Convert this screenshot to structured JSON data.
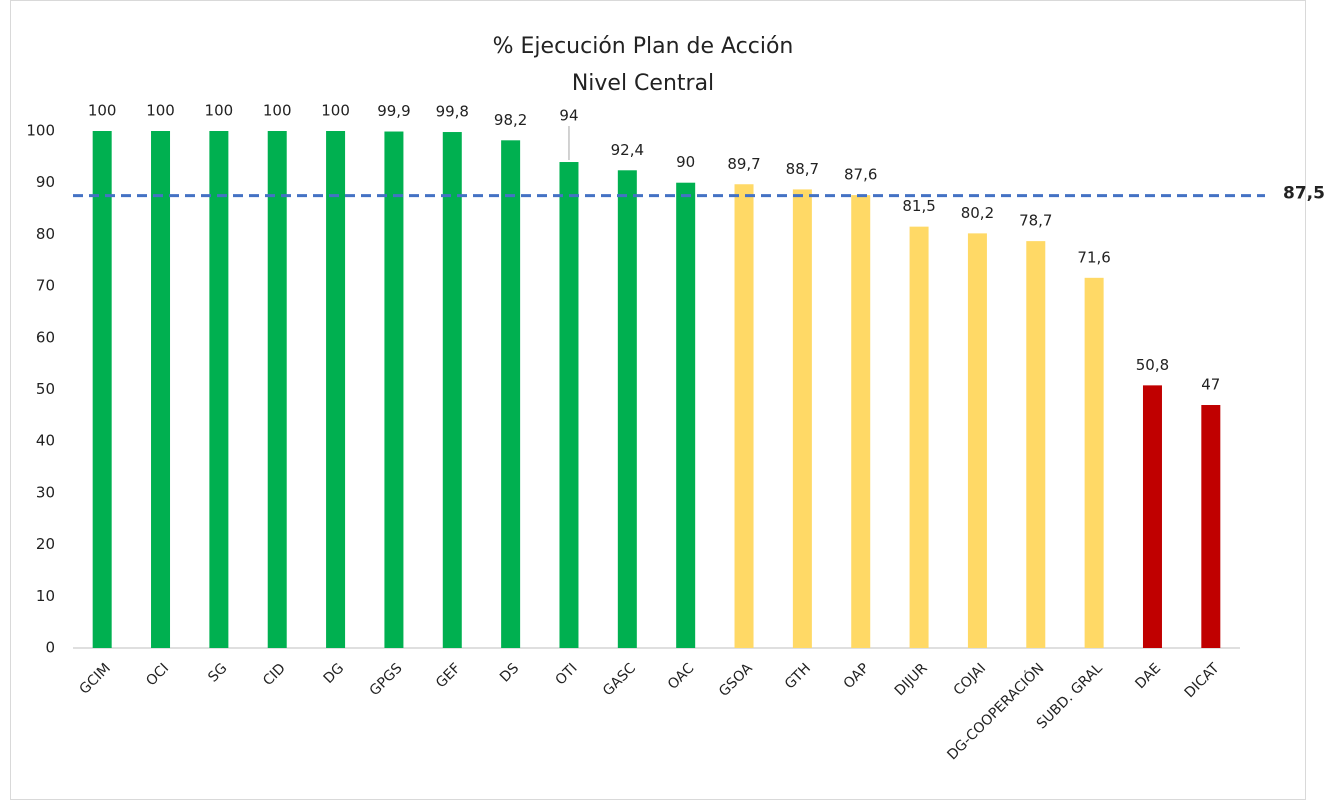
{
  "chart_data": {
    "type": "bar",
    "title": "% Ejecución Plan de Acción",
    "subtitle": "Nivel Central",
    "categories": [
      "GCIM",
      "OCI",
      "SG",
      "CID",
      "DG",
      "GPGS",
      "GEF",
      "DS",
      "OTI",
      "GASC",
      "OAC",
      "GSOA",
      "GTH",
      "OAP",
      "DIJUR",
      "COJAI",
      "DG-COOPERACIÓN",
      "SUBD. GRAL",
      "DAE",
      "DICAT"
    ],
    "values": [
      100,
      100,
      100,
      100,
      100,
      99.9,
      99.8,
      98.2,
      94,
      92.4,
      90,
      89.7,
      88.7,
      87.6,
      81.5,
      80.2,
      78.7,
      71.6,
      50.8,
      47
    ],
    "value_labels": [
      "100",
      "100",
      "100",
      "100",
      "100",
      "99,9",
      "99,8",
      "98,2",
      "94",
      "92,4",
      "90",
      "89,7",
      "88,7",
      "87,6",
      "81,5",
      "80,2",
      "78,7",
      "71,6",
      "50,8",
      "47"
    ],
    "colors": [
      "#00b050",
      "#00b050",
      "#00b050",
      "#00b050",
      "#00b050",
      "#00b050",
      "#00b050",
      "#00b050",
      "#00b050",
      "#00b050",
      "#00b050",
      "#ffd966",
      "#ffd966",
      "#ffd966",
      "#ffd966",
      "#ffd966",
      "#ffd966",
      "#ffd966",
      "#c00000",
      "#c00000"
    ],
    "ylim": [
      0,
      100
    ],
    "yticks": [
      0,
      10,
      20,
      30,
      40,
      50,
      60,
      70,
      80,
      90,
      100
    ],
    "grid": false,
    "reference_line": {
      "value": 87.5,
      "label": "87,5",
      "color": "#4472c4"
    }
  }
}
